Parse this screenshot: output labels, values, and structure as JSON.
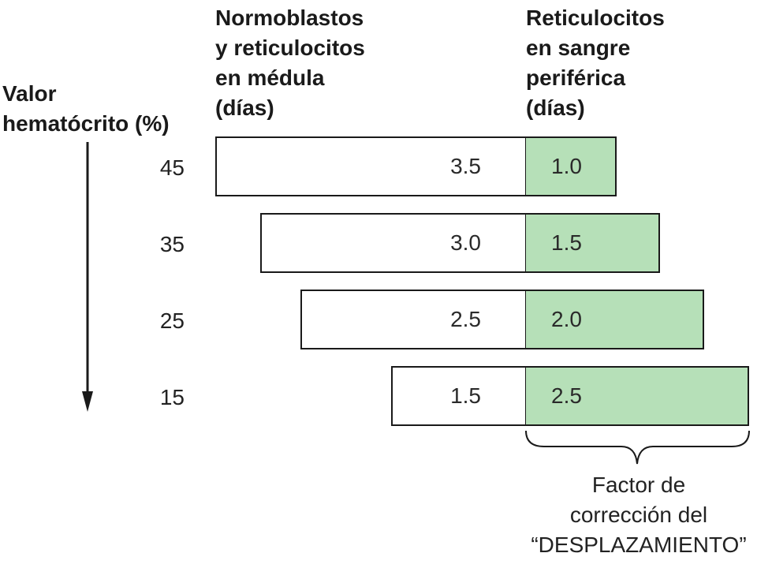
{
  "headers": {
    "hematocrit": [
      "Valor",
      "hematócrito (%)"
    ],
    "marrow": [
      "Normoblastos",
      "y reticulocitos",
      "en médula",
      "(días)"
    ],
    "peripheral": [
      "Reticulocitos",
      "en sangre",
      "periférica",
      "(días)"
    ]
  },
  "rows": [
    {
      "hematocrit": "45",
      "marrow": "3.5",
      "peripheral": "1.0"
    },
    {
      "hematocrit": "35",
      "marrow": "3.0",
      "peripheral": "1.5"
    },
    {
      "hematocrit": "25",
      "marrow": "2.5",
      "peripheral": "2.0"
    },
    {
      "hematocrit": "15",
      "marrow": "1.5",
      "peripheral": "2.5"
    }
  ],
  "footnote": [
    "Factor de",
    "corrección del",
    "“DESPLAZAMIENTO”"
  ],
  "colors": {
    "peripheral_fill": "#b6e0b8",
    "outline": "#1a1a1a"
  },
  "icons": {
    "arrow": "arrow-down-icon",
    "brace": "curly-brace-icon"
  }
}
